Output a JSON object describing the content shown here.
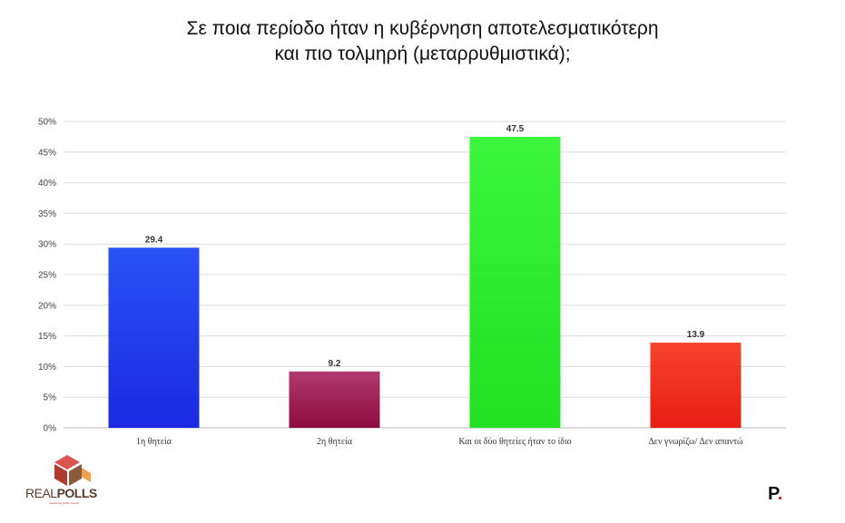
{
  "title_lines": [
    "Σε ποια περίοδο ήταν η κυβέρνηση αποτελεσματικότερη",
    "και πιο τολμηρή (μεταρρυθμιστικά);"
  ],
  "chart_data": {
    "type": "bar",
    "title": "Σε ποια περίοδο ήταν η κυβέρνηση αποτελεσματικότερη και πιο τολμηρή (μεταρρυθμιστικά);",
    "categories": [
      "1η θητεία",
      "2η θητεία",
      "Και οι δύο θητείες ήταν το ίδιο",
      "Δεν γνωρίζω/ Δεν απαντώ"
    ],
    "values": [
      29.4,
      9.2,
      47.5,
      13.9
    ],
    "value_labels": [
      "29.4",
      "9.2",
      "47.5",
      "13.9"
    ],
    "ylim": [
      0,
      50
    ],
    "yticks": [
      "0%",
      "5%",
      "10%",
      "15%",
      "20%",
      "25%",
      "30%",
      "35%",
      "40%",
      "45%",
      "50%"
    ],
    "xlabel": "",
    "ylabel": "",
    "grid": true,
    "bar_gradients": [
      [
        "#2a52f5",
        "#1a2ae0"
      ],
      [
        "#b03a6e",
        "#8e0c3e"
      ],
      [
        "#3cf53c",
        "#22e022"
      ],
      [
        "#f5442e",
        "#e81e14"
      ]
    ]
  },
  "logos": {
    "left_text_light": "REAL",
    "left_text_bold": "POLLS",
    "left_tagline": "measuring public opinion",
    "left_colors": [
      "#d9534f",
      "#b03a2e",
      "#8b5a3c",
      "#f0a04b"
    ],
    "right_text": "P",
    "right_dot": ".",
    "right_dot_color": "#e0201c"
  }
}
